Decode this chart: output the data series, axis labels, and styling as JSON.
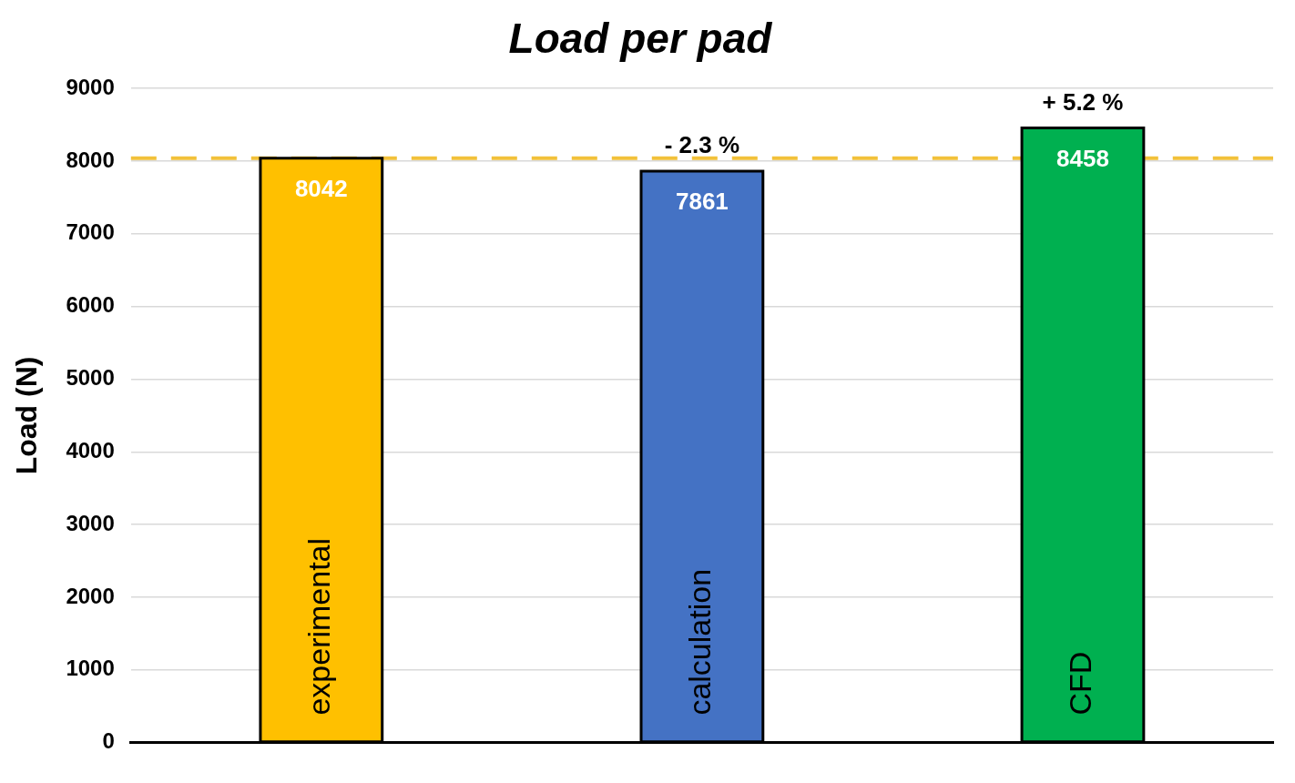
{
  "chart_data": {
    "type": "bar",
    "title": "Load per pad",
    "ylabel": "Load (N)",
    "categories": [
      "experimental",
      "calculation",
      "CFD"
    ],
    "values": [
      8042,
      7861,
      8458
    ],
    "colors": [
      "#ffc000",
      "#4472c4",
      "#00b050"
    ],
    "ylim": [
      0,
      9000
    ],
    "yticks": [
      0,
      1000,
      2000,
      3000,
      4000,
      5000,
      6000,
      7000,
      8000,
      9000
    ],
    "grid": "y",
    "legend": false,
    "data_labels": true,
    "ref_lines": [
      {
        "axis": "y",
        "value": 8042,
        "color": "#f2c13a",
        "line_style": "dashed"
      }
    ],
    "annotations": [
      {
        "text": "- 2.3 %",
        "x": "calculation",
        "y": 7861
      },
      {
        "text": "+ 5.2 %",
        "x": "CFD",
        "y": 8458
      }
    ]
  }
}
